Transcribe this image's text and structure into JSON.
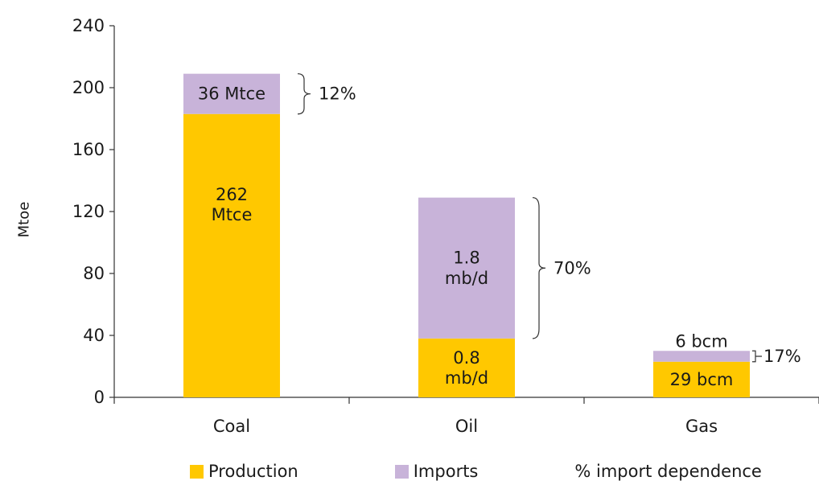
{
  "chart_data": {
    "type": "bar",
    "stacked": true,
    "title": "",
    "xlabel": "",
    "ylabel": "Mtoe",
    "ylim": [
      0,
      240
    ],
    "yticks": [
      0,
      40,
      80,
      120,
      160,
      200,
      240
    ],
    "grid": false,
    "categories": [
      "Coal",
      "Oil",
      "Gas"
    ],
    "series": [
      {
        "name": "Production",
        "color": "#FFC800",
        "values": [
          183,
          38,
          23
        ],
        "labels": [
          "262\nMtce",
          "0.8\nmb/d",
          "29 bcm"
        ]
      },
      {
        "name": "Imports",
        "color": "#C8B3D9",
        "values": [
          26,
          91,
          7
        ],
        "labels": [
          "36 Mtce",
          "1.8\nmb/d",
          "6 bcm"
        ]
      }
    ],
    "import_dependence": [
      "12%",
      "70%",
      "17%"
    ],
    "legend": {
      "position": "bottom",
      "items": [
        "Production",
        "Imports",
        "% import dependence"
      ]
    }
  }
}
